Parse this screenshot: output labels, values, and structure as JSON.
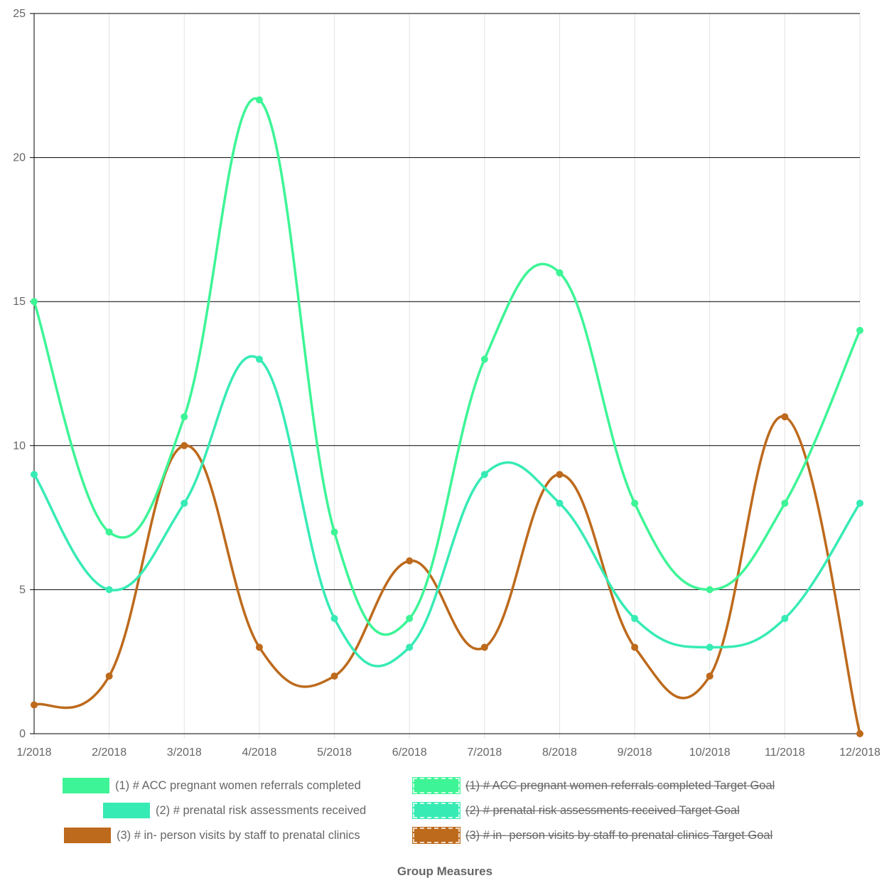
{
  "chart_data": {
    "type": "line",
    "title": "Group Measures",
    "categories": [
      "1/2018",
      "2/2018",
      "3/2018",
      "4/2018",
      "5/2018",
      "6/2018",
      "7/2018",
      "8/2018",
      "9/2018",
      "10/2018",
      "11/2018",
      "12/2018"
    ],
    "ylim": [
      0,
      25
    ],
    "yticks": [
      "0",
      "5",
      "10",
      "15",
      "20",
      "25"
    ],
    "grid": true,
    "legend_position": "bottom",
    "series": [
      {
        "name": "(1) # ACC pregnant women referrals completed",
        "color": "#3df596",
        "values": [
          15,
          7,
          11,
          22,
          7,
          4,
          13,
          16,
          8,
          5,
          8,
          14
        ]
      },
      {
        "name": "(2) # prenatal risk assessments received",
        "color": "#37ebb5",
        "values": [
          9,
          5,
          8,
          13,
          4,
          3,
          9,
          8,
          4,
          3,
          4,
          8
        ]
      },
      {
        "name": "(3) # in- person visits by staff to prenatal clinics",
        "color": "#bd6a1c",
        "values": [
          1,
          2,
          10,
          3,
          2,
          6,
          3,
          9,
          3,
          2,
          11,
          0
        ]
      }
    ],
    "legend": [
      {
        "label": "(1) # ACC pregnant women referrals completed",
        "color": "#3df596",
        "hidden": false,
        "dashed": false
      },
      {
        "label": "(1) # ACC pregnant women referrals completed Target Goal",
        "color": "#3df596",
        "hidden": true,
        "dashed": true
      },
      {
        "label": "(2) # prenatal risk assessments received",
        "color": "#37ebb5",
        "hidden": false,
        "dashed": false
      },
      {
        "label": "(2) # prenatal risk assessments received Target Goal",
        "color": "#37ebb5",
        "hidden": true,
        "dashed": true
      },
      {
        "label": "(3) # in- person visits by staff to prenatal clinics",
        "color": "#bd6a1c",
        "hidden": false,
        "dashed": false
      },
      {
        "label": "(3) # in- person visits by staff to prenatal clinics Target Goal",
        "color": "#bd6a1c",
        "hidden": true,
        "dashed": true
      }
    ]
  }
}
